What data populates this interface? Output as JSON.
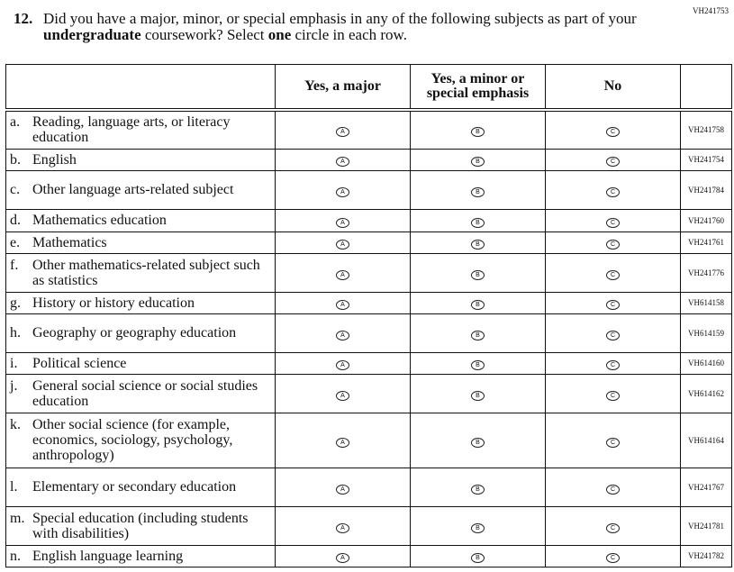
{
  "question_id": "VH241753",
  "question": {
    "number": "12.",
    "text_parts": [
      "Did you have a major, minor, or special emphasis in any of the following subjects as part of your ",
      "undergraduate",
      " coursework? Select ",
      "one",
      " circle in each row."
    ]
  },
  "columns": [
    "",
    "Yes, a major",
    "Yes, a minor or special emphasis",
    "No",
    ""
  ],
  "option_letters": [
    "A",
    "B",
    "C"
  ],
  "rows": [
    {
      "letter": "a.",
      "label": "Reading, language arts, or literacy education",
      "code": "VH241758",
      "h": 1
    },
    {
      "letter": "b.",
      "label": "English",
      "code": "VH241754"
    },
    {
      "letter": "c.",
      "label": "Other language arts-related subject",
      "code": "VH241784"
    },
    {
      "letter": "d.",
      "label": "Mathematics education",
      "code": "VH241760"
    },
    {
      "letter": "e.",
      "label": "Mathematics",
      "code": "VH241761"
    },
    {
      "letter": "f.",
      "label": "Other mathematics-related subject such as statistics",
      "code": "VH241776"
    },
    {
      "letter": "g.",
      "label": "History or history education",
      "code": "VH614158"
    },
    {
      "letter": "h.",
      "label": "Geography or geography education",
      "code": "VH614159"
    },
    {
      "letter": "i.",
      "label": "Political science",
      "code": "VH614160"
    },
    {
      "letter": "j.",
      "label": "General social science or social studies education",
      "code": "VH614162"
    },
    {
      "letter": "k.",
      "label": "Other social science (for example, economics, sociology, psychology, anthropology)",
      "code": "VH614164"
    },
    {
      "letter": "l.",
      "label": "Elementary or secondary education",
      "code": "VH241767"
    },
    {
      "letter": "m.",
      "label": "Special education (including students with disabilities)",
      "code": "VH241781"
    },
    {
      "letter": "n.",
      "label": "English language learning",
      "code": "VH241782"
    }
  ]
}
